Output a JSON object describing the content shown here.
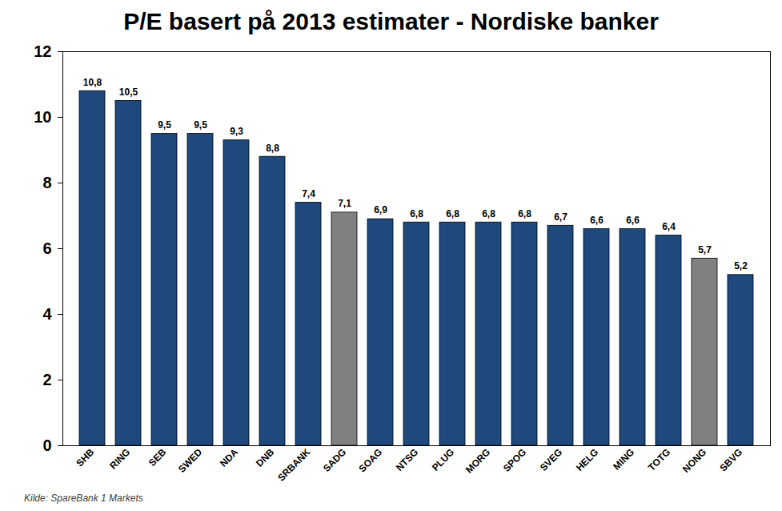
{
  "chart_data": {
    "type": "bar",
    "title": "P/E basert på 2013 estimater - Nordiske banker",
    "source": "Kilde: SpareBank 1 Markets",
    "categories": [
      "SHB",
      "RING",
      "SEB",
      "SWED",
      "NDA",
      "DNB",
      "SRBANK",
      "SADG",
      "SOAG",
      "NTSG",
      "PLUG",
      "MORG",
      "SPOG",
      "SVEG",
      "HELG",
      "MING",
      "TOTG",
      "NONG",
      "SBVG"
    ],
    "values": [
      10.8,
      10.5,
      9.5,
      9.5,
      9.3,
      8.8,
      7.4,
      7.1,
      6.9,
      6.8,
      6.8,
      6.8,
      6.8,
      6.7,
      6.6,
      6.6,
      6.4,
      5.7,
      5.2
    ],
    "value_labels": [
      "10,8",
      "10,5",
      "9,5",
      "9,5",
      "9,3",
      "8,8",
      "7,4",
      "7,1",
      "6,9",
      "6,8",
      "6,8",
      "6,8",
      "6,8",
      "6,7",
      "6,6",
      "6,6",
      "6,4",
      "5,7",
      "5,2"
    ],
    "colors": [
      "#1f497d",
      "#1f497d",
      "#1f497d",
      "#1f497d",
      "#1f497d",
      "#1f497d",
      "#1f497d",
      "#808080",
      "#1f497d",
      "#1f497d",
      "#1f497d",
      "#1f497d",
      "#1f497d",
      "#1f497d",
      "#1f497d",
      "#1f497d",
      "#1f497d",
      "#808080",
      "#1f497d"
    ],
    "ylim": [
      0,
      12
    ],
    "yticks": [
      0,
      2,
      4,
      6,
      8,
      10,
      12
    ],
    "grid": false,
    "data_labels": true
  }
}
